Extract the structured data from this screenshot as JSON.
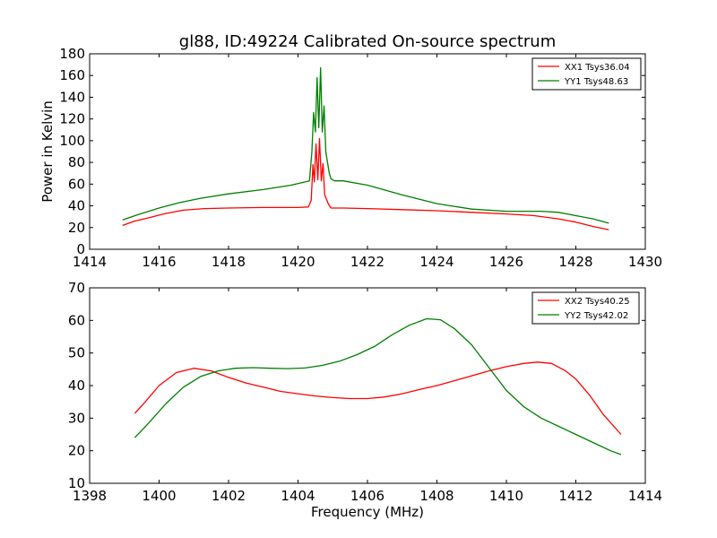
{
  "figure": {
    "title": "gl88, ID:49224 Calibrated On-source spectrum",
    "xlabel": "Frequency (MHz)"
  },
  "colors": {
    "xx": "#ff0000",
    "yy": "#007f00"
  },
  "chart_data": [
    {
      "type": "line",
      "title": "gl88, ID:49224 Calibrated On-source spectrum",
      "xlabel": "",
      "ylabel": "Power in Kelvin",
      "xlim": [
        1414,
        1430
      ],
      "ylim": [
        0,
        180
      ],
      "xticks": [
        1414,
        1416,
        1418,
        1420,
        1422,
        1424,
        1426,
        1428,
        1430
      ],
      "yticks": [
        0,
        20,
        40,
        60,
        80,
        100,
        120,
        140,
        160,
        180
      ],
      "grid": false,
      "legend_position": "top-right",
      "series": [
        {
          "name": "XX1 Tsys36.04",
          "color": "#ff0000",
          "x": [
            1414.95,
            1415.3,
            1415.7,
            1416.2,
            1416.7,
            1417.3,
            1418.0,
            1419.0,
            1420.0,
            1420.3,
            1420.38,
            1420.43,
            1420.47,
            1420.52,
            1420.57,
            1420.62,
            1420.67,
            1420.72,
            1420.77,
            1420.82,
            1420.87,
            1420.95,
            1421.05,
            1421.3,
            1422.0,
            1423.0,
            1424.0,
            1425.0,
            1426.0,
            1426.8,
            1427.5,
            1428.0,
            1428.5,
            1428.95
          ],
          "y": [
            22,
            26,
            29,
            33,
            36,
            37.5,
            38,
            38.5,
            38.5,
            39,
            45,
            78,
            62,
            97,
            64,
            102,
            63,
            79,
            50,
            46,
            42,
            38,
            38,
            38,
            37.5,
            36.5,
            35.5,
            34,
            32.5,
            31,
            28,
            25,
            21,
            18
          ]
        },
        {
          "name": "YY1 Tsys48.63",
          "color": "#007f00",
          "x": [
            1414.95,
            1415.4,
            1416.0,
            1416.6,
            1417.2,
            1418.0,
            1419.0,
            1419.8,
            1420.2,
            1420.33,
            1420.4,
            1420.45,
            1420.5,
            1420.55,
            1420.6,
            1420.65,
            1420.7,
            1420.75,
            1420.8,
            1420.85,
            1420.9,
            1420.95,
            1421.05,
            1421.3,
            1422.0,
            1423.0,
            1424.0,
            1425.0,
            1426.0,
            1427.0,
            1427.5,
            1428.0,
            1428.5,
            1428.95
          ],
          "y": [
            27,
            32,
            38,
            43,
            47,
            51,
            55,
            59,
            62,
            63,
            90,
            126,
            108,
            158,
            112,
            167,
            108,
            132,
            90,
            80,
            70,
            65,
            63,
            63,
            59,
            50,
            42,
            37,
            35,
            35,
            34,
            31,
            28,
            24
          ]
        }
      ]
    },
    {
      "type": "line",
      "title": "",
      "xlabel": "Frequency (MHz)",
      "ylabel": "",
      "xlim": [
        1398,
        1414
      ],
      "ylim": [
        10,
        70
      ],
      "xticks": [
        1398,
        1400,
        1402,
        1404,
        1406,
        1408,
        1410,
        1412,
        1414
      ],
      "yticks": [
        10,
        20,
        30,
        40,
        50,
        60,
        70
      ],
      "grid": false,
      "legend_position": "top-right",
      "series": [
        {
          "name": "XX2 Tsys40.25",
          "color": "#ff0000",
          "x": [
            1399.3,
            1399.6,
            1400.0,
            1400.5,
            1401.0,
            1401.5,
            1402.0,
            1402.5,
            1403.0,
            1403.5,
            1404.0,
            1404.5,
            1405.0,
            1405.5,
            1406.0,
            1406.5,
            1407.0,
            1407.5,
            1408.0,
            1408.5,
            1409.0,
            1409.5,
            1410.0,
            1410.5,
            1410.9,
            1411.3,
            1411.7,
            1412.0,
            1412.4,
            1412.8,
            1413.3
          ],
          "y": [
            31.5,
            35,
            40,
            44,
            45.3,
            44.5,
            42.5,
            40.8,
            39.5,
            38.2,
            37.5,
            36.8,
            36.3,
            36.0,
            36.0,
            36.5,
            37.5,
            38.8,
            40.0,
            41.5,
            43.0,
            44.5,
            45.8,
            46.8,
            47.2,
            46.8,
            44.5,
            42,
            37,
            31,
            25
          ]
        },
        {
          "name": "YY2 Tsys42.02",
          "color": "#007f00",
          "x": [
            1399.3,
            1399.7,
            1400.2,
            1400.7,
            1401.2,
            1401.7,
            1402.2,
            1402.7,
            1403.2,
            1403.7,
            1404.2,
            1404.7,
            1405.2,
            1405.7,
            1406.2,
            1406.7,
            1407.2,
            1407.7,
            1408.1,
            1408.5,
            1409.0,
            1409.5,
            1410.0,
            1410.5,
            1411.0,
            1411.5,
            1412.0,
            1412.5,
            1413.0,
            1413.3
          ],
          "y": [
            24,
            28.5,
            34.5,
            39.5,
            42.8,
            44.5,
            45.3,
            45.5,
            45.3,
            45.2,
            45.4,
            46.2,
            47.5,
            49.5,
            52,
            55.5,
            58.5,
            60.5,
            60.2,
            57.5,
            52.5,
            45.5,
            38.5,
            33.5,
            30.0,
            27.5,
            25.0,
            22.5,
            20.0,
            18.8
          ]
        }
      ]
    }
  ]
}
